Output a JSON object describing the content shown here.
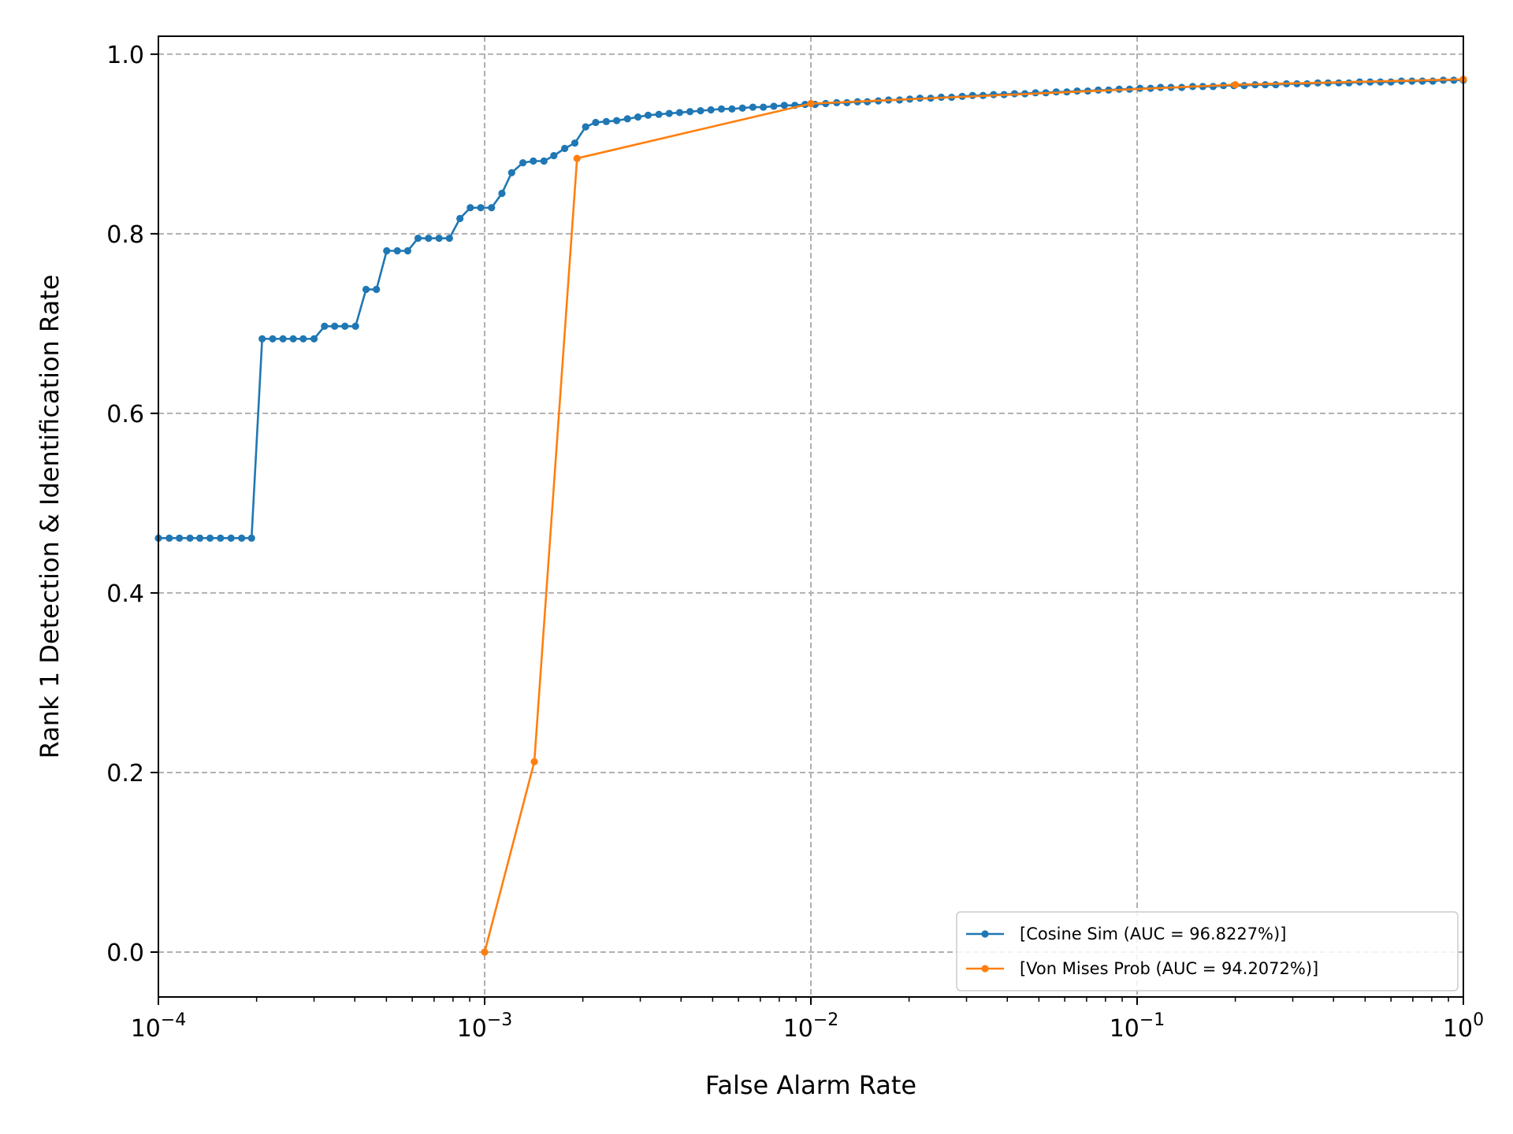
{
  "chart_data": {
    "type": "line",
    "title": "",
    "xlabel": "False Alarm Rate",
    "ylabel": "Rank 1 Detection & Identification Rate",
    "xscale": "log",
    "xlim": [
      0.0001,
      1
    ],
    "ylim": [
      -0.05,
      1.02
    ],
    "grid": true,
    "grid_style": "dashed",
    "legend_position": "lower-right",
    "x_ticks": [
      {
        "base": "10",
        "exp": "−4"
      },
      {
        "base": "10",
        "exp": "−3"
      },
      {
        "base": "10",
        "exp": "−2"
      },
      {
        "base": "10",
        "exp": "−1"
      },
      {
        "base": "10",
        "exp": "0"
      }
    ],
    "y_ticks": [
      "0.0",
      "0.2",
      "0.4",
      "0.6",
      "0.8",
      "1.0"
    ],
    "series": [
      {
        "name": "[Cosine Sim (AUC = 96.8227%)]",
        "color": "#1f77b4",
        "marker": "circle",
        "x": [
          0.0001,
          0.000108,
          0.000116,
          0.000125,
          0.000134,
          0.000144,
          0.000155,
          0.000167,
          0.00018,
          0.000193,
          0.000208,
          0.000224,
          0.000241,
          0.000259,
          0.000278,
          0.0003,
          0.000323,
          0.000347,
          0.000373,
          0.000402,
          0.000433,
          0.000466,
          0.000501,
          0.00054,
          0.000581,
          0.000625,
          0.000673,
          0.000725,
          0.00078,
          0.00084,
          0.000904,
          0.000973,
          0.00105,
          0.00113,
          0.00121,
          0.00131,
          0.00141,
          0.00152,
          0.00163,
          0.00176,
          0.00189,
          0.00204,
          0.00219,
          0.00236,
          0.00254,
          0.00274,
          0.00295,
          0.00317,
          0.00342,
          0.00368,
          0.00396,
          0.00426,
          0.00459,
          0.00494,
          0.00532,
          0.00573,
          0.00617,
          0.00664,
          0.00715,
          0.0077,
          0.00829,
          0.00893,
          0.0096,
          0.0103,
          0.0111,
          0.012,
          0.0129,
          0.0139,
          0.0149,
          0.0161,
          0.0173,
          0.0187,
          0.0201,
          0.0216,
          0.0233,
          0.0251,
          0.027,
          0.0291,
          0.0313,
          0.0337,
          0.0363,
          0.0391,
          0.0421,
          0.0453,
          0.0488,
          0.0525,
          0.0565,
          0.0609,
          0.0655,
          0.0706,
          0.076,
          0.0818,
          0.0881,
          0.0948,
          0.102,
          0.11,
          0.118,
          0.127,
          0.137,
          0.148,
          0.159,
          0.171,
          0.184,
          0.198,
          0.213,
          0.23,
          0.247,
          0.266,
          0.287,
          0.309,
          0.332,
          0.358,
          0.385,
          0.415,
          0.446,
          0.481,
          0.518,
          0.557,
          0.6,
          0.646,
          0.696,
          0.749,
          0.806,
          0.868,
          0.935,
          1.0
        ],
        "y": [
          0.461,
          0.461,
          0.461,
          0.461,
          0.461,
          0.461,
          0.461,
          0.461,
          0.461,
          0.461,
          0.683,
          0.683,
          0.683,
          0.683,
          0.683,
          0.683,
          0.697,
          0.697,
          0.697,
          0.697,
          0.738,
          0.738,
          0.781,
          0.781,
          0.781,
          0.795,
          0.795,
          0.795,
          0.795,
          0.817,
          0.829,
          0.829,
          0.829,
          0.845,
          0.868,
          0.879,
          0.881,
          0.881,
          0.887,
          0.895,
          0.901,
          0.919,
          0.924,
          0.925,
          0.926,
          0.928,
          0.93,
          0.932,
          0.933,
          0.934,
          0.935,
          0.936,
          0.937,
          0.938,
          0.939,
          0.939,
          0.94,
          0.941,
          0.941,
          0.942,
          0.943,
          0.943,
          0.944,
          0.944,
          0.945,
          0.946,
          0.946,
          0.947,
          0.947,
          0.948,
          0.949,
          0.949,
          0.95,
          0.951,
          0.951,
          0.952,
          0.952,
          0.953,
          0.954,
          0.954,
          0.955,
          0.955,
          0.956,
          0.956,
          0.957,
          0.957,
          0.958,
          0.958,
          0.959,
          0.959,
          0.96,
          0.96,
          0.961,
          0.961,
          0.962,
          0.962,
          0.963,
          0.963,
          0.963,
          0.964,
          0.964,
          0.964,
          0.965,
          0.965,
          0.965,
          0.966,
          0.966,
          0.966,
          0.967,
          0.967,
          0.967,
          0.968,
          0.968,
          0.968,
          0.968,
          0.969,
          0.969,
          0.969,
          0.969,
          0.97,
          0.97,
          0.97,
          0.97,
          0.971,
          0.971,
          0.971
        ]
      },
      {
        "name": "[Von Mises Prob (AUC = 94.2072%)]",
        "color": "#ff7f0e",
        "marker": "circle",
        "x": [
          0.001,
          0.00142,
          0.00192,
          0.01,
          0.2,
          1.0
        ],
        "y": [
          0.0,
          0.212,
          0.884,
          0.945,
          0.966,
          0.972
        ]
      }
    ]
  }
}
